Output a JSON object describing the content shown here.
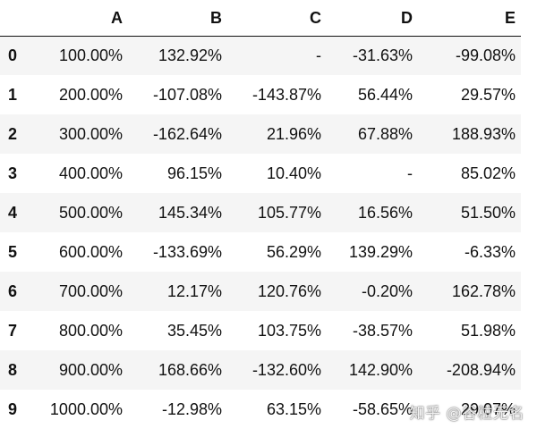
{
  "table": {
    "columns": [
      "A",
      "B",
      "C",
      "D",
      "E"
    ],
    "rows": [
      {
        "index": "0",
        "cells": [
          "100.00%",
          "132.92%",
          "-",
          "-31.63%",
          "-99.08%"
        ]
      },
      {
        "index": "1",
        "cells": [
          "200.00%",
          "-107.08%",
          "-143.87%",
          "56.44%",
          "29.57%"
        ]
      },
      {
        "index": "2",
        "cells": [
          "300.00%",
          "-162.64%",
          "21.96%",
          "67.88%",
          "188.93%"
        ]
      },
      {
        "index": "3",
        "cells": [
          "400.00%",
          "96.15%",
          "10.40%",
          "-",
          "85.02%"
        ]
      },
      {
        "index": "4",
        "cells": [
          "500.00%",
          "145.34%",
          "105.77%",
          "16.56%",
          "51.50%"
        ]
      },
      {
        "index": "5",
        "cells": [
          "600.00%",
          "-133.69%",
          "56.29%",
          "139.29%",
          "-6.33%"
        ]
      },
      {
        "index": "6",
        "cells": [
          "700.00%",
          "12.17%",
          "120.76%",
          "-0.20%",
          "162.78%"
        ]
      },
      {
        "index": "7",
        "cells": [
          "800.00%",
          "35.45%",
          "103.75%",
          "-38.57%",
          "51.98%"
        ]
      },
      {
        "index": "8",
        "cells": [
          "900.00%",
          "168.66%",
          "-132.60%",
          "142.90%",
          "-208.94%"
        ]
      },
      {
        "index": "9",
        "cells": [
          "1000.00%",
          "-12.98%",
          "63.15%",
          "-58.65%",
          "29.07%"
        ]
      }
    ]
  },
  "watermark": "知乎 @谷粒无名"
}
